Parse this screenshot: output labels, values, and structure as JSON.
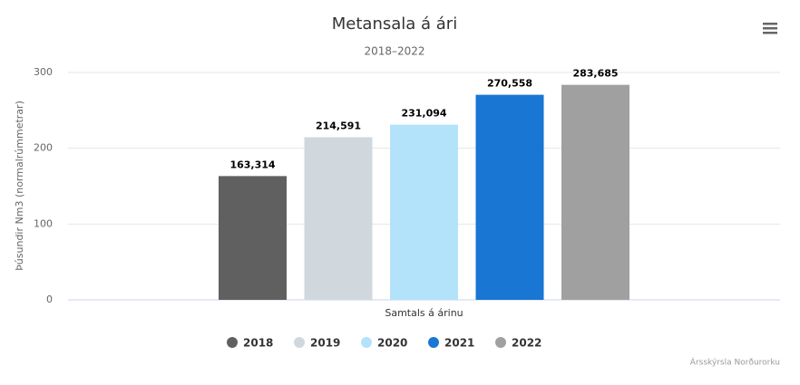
{
  "chart_data": {
    "type": "bar",
    "title": "Metansala á ári",
    "subtitle": "2018–2022",
    "ylabel": "Þúsundir Nm3 (normalrúmmetrar)",
    "categories": [
      "Samtals á árinu"
    ],
    "series": [
      {
        "name": "2018",
        "color": "#606060",
        "values": [
          163.314
        ],
        "value_labels": [
          "163,314"
        ]
      },
      {
        "name": "2019",
        "color": "#d0d8de",
        "values": [
          214.591
        ],
        "value_labels": [
          "214,591"
        ]
      },
      {
        "name": "2020",
        "color": "#b3e3fa",
        "values": [
          231.094
        ],
        "value_labels": [
          "231,094"
        ]
      },
      {
        "name": "2021",
        "color": "#1976d2",
        "values": [
          270.558
        ],
        "value_labels": [
          "270,558"
        ]
      },
      {
        "name": "2022",
        "color": "#a0a0a0",
        "values": [
          283.685
        ],
        "value_labels": [
          "283,685"
        ]
      }
    ],
    "ylim": [
      0,
      300
    ],
    "yticks": [
      0,
      100,
      200,
      300
    ],
    "grid": true,
    "legend": "bottom",
    "credits": "Ársskýrsla Norðurorku"
  }
}
